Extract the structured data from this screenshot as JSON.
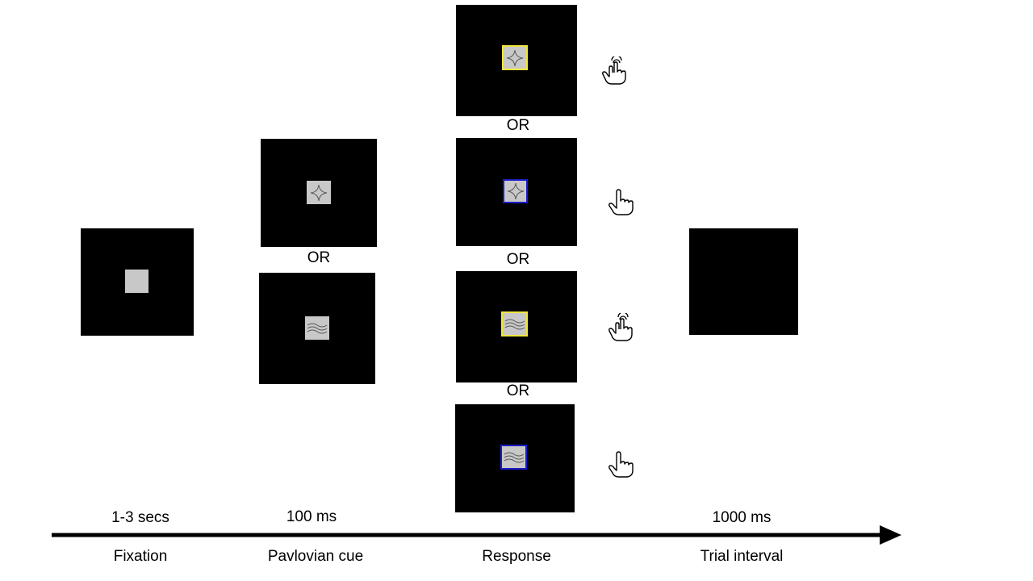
{
  "separator_label": "OR",
  "stages": {
    "fixation": {
      "label": "Fixation",
      "duration": "1-3 secs"
    },
    "pavlovian_cue": {
      "label": "Pavlovian cue",
      "duration": "100 ms"
    },
    "response": {
      "label": "Response"
    },
    "trial_interval": {
      "label": "Trial interval",
      "duration": "1000 ms"
    }
  },
  "colors": {
    "screen": "#000000",
    "stimulus_gray": "#c8c8c8",
    "frame_yellow": "#f0e63c",
    "frame_blue": "#1c1cc8"
  },
  "response_options": [
    {
      "symbol": "star-icon",
      "frame": "yellow",
      "hand": "hand-click-icon"
    },
    {
      "symbol": "star-icon",
      "frame": "blue",
      "hand": "hand-point-icon"
    },
    {
      "symbol": "wave-icon",
      "frame": "yellow",
      "hand": "hand-click-icon"
    },
    {
      "symbol": "wave-icon",
      "frame": "blue",
      "hand": "hand-point-icon"
    }
  ]
}
